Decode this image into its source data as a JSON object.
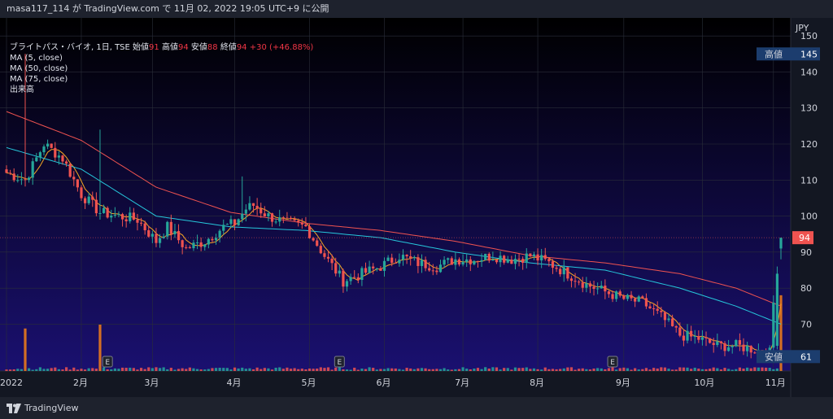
{
  "header": {
    "text": "masa117_114 が TradingView.com で 11月 02, 2022 19:05 UTC+9 に公開"
  },
  "legend": {
    "symbol": "ブライトパス・バイオ, 1日, TSE",
    "open_label": "始値",
    "open_value": "91",
    "high_label": "高値",
    "high_value": "94",
    "low_label": "安値",
    "low_value": "88",
    "close_label": "終値",
    "close_value": "94",
    "change": "+30 (+46.88%)",
    "ma_lines": [
      "MA (5, close)",
      "MA (50, close)",
      "MA (75, close)"
    ],
    "volume_label": "出来高"
  },
  "axis": {
    "currency": "JPY",
    "price_ticks": [
      "150",
      "140",
      "130",
      "120",
      "110",
      "100",
      "90",
      "80",
      "70"
    ],
    "price_tick_values": [
      150,
      140,
      130,
      120,
      110,
      100,
      90,
      80,
      70
    ],
    "month_labels": [
      "2022",
      "2月",
      "3月",
      "4月",
      "5月",
      "6月",
      "7月",
      "8月",
      "9月",
      "10月",
      "11月"
    ],
    "high_marker_label": "高値",
    "high_marker_value": "145",
    "low_marker_label": "安値",
    "low_marker_value": "61",
    "last_price_label": "94",
    "earnings_marker": "E"
  },
  "colors": {
    "up": "#26a69a",
    "down": "#ef5350",
    "ma5": "#f5a623",
    "ma50": "#26c6da",
    "ma75": "#ef5350",
    "volume_up": "#26a69a",
    "volume_down": "#ef5350",
    "volume_spike": "#f57f17"
  },
  "chart_data": {
    "type": "candlestick",
    "y_range": [
      57,
      155
    ],
    "last_price": 94,
    "high_marker_price": 145,
    "low_marker_price": 61,
    "month_start_index": [
      0,
      20,
      39,
      61,
      81,
      101,
      122,
      142,
      165,
      186,
      205
    ],
    "earnings_index": [
      27,
      89,
      162
    ],
    "anchors": [
      [
        0,
        112
      ],
      [
        5,
        110
      ],
      [
        10,
        120
      ],
      [
        15,
        116
      ],
      [
        20,
        106
      ],
      [
        25,
        101
      ],
      [
        30,
        100
      ],
      [
        35,
        99
      ],
      [
        40,
        93
      ],
      [
        43,
        97
      ],
      [
        48,
        91
      ],
      [
        53,
        93
      ],
      [
        58,
        97
      ],
      [
        61,
        98
      ],
      [
        64,
        102
      ],
      [
        66,
        103
      ],
      [
        70,
        100
      ],
      [
        75,
        98
      ],
      [
        80,
        97
      ],
      [
        85,
        89
      ],
      [
        90,
        82
      ],
      [
        95,
        84
      ],
      [
        100,
        86
      ],
      [
        105,
        89
      ],
      [
        110,
        87
      ],
      [
        115,
        86
      ],
      [
        120,
        88
      ],
      [
        125,
        88
      ],
      [
        130,
        89
      ],
      [
        135,
        88
      ],
      [
        140,
        89
      ],
      [
        145,
        87
      ],
      [
        150,
        84
      ],
      [
        155,
        81
      ],
      [
        160,
        79
      ],
      [
        165,
        77
      ],
      [
        170,
        76
      ],
      [
        175,
        72
      ],
      [
        180,
        67
      ],
      [
        185,
        66
      ],
      [
        190,
        64
      ],
      [
        195,
        64
      ],
      [
        200,
        63
      ],
      [
        204,
        62
      ],
      [
        206,
        90
      ],
      [
        207,
        94
      ]
    ],
    "ma50_anchors": [
      [
        0,
        119
      ],
      [
        20,
        113
      ],
      [
        40,
        100
      ],
      [
        60,
        97
      ],
      [
        80,
        96
      ],
      [
        100,
        94
      ],
      [
        120,
        90
      ],
      [
        140,
        87
      ],
      [
        160,
        85
      ],
      [
        180,
        80
      ],
      [
        195,
        75
      ],
      [
        207,
        70
      ]
    ],
    "ma75_anchors": [
      [
        0,
        129
      ],
      [
        20,
        121
      ],
      [
        40,
        108
      ],
      [
        60,
        101
      ],
      [
        80,
        98
      ],
      [
        100,
        96
      ],
      [
        120,
        93
      ],
      [
        140,
        89
      ],
      [
        160,
        87
      ],
      [
        180,
        84
      ],
      [
        195,
        80
      ],
      [
        207,
        75
      ]
    ],
    "volume_spikes": [
      [
        5,
        0.55
      ],
      [
        25,
        0.6
      ],
      [
        207,
        0.98
      ]
    ],
    "total_bars": 208
  }
}
